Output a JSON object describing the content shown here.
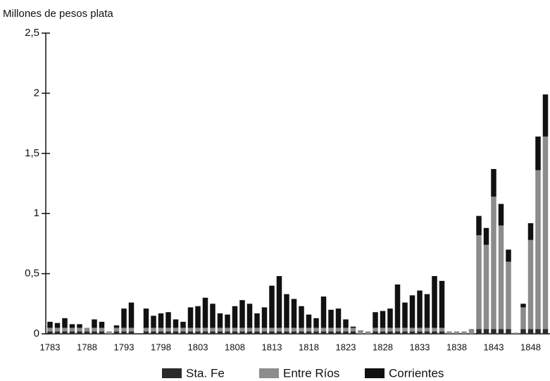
{
  "chart_data": {
    "type": "bar",
    "stacked": true,
    "y_label": "Millones de pesos plata",
    "categories": [
      "1783",
      null,
      null,
      null,
      null,
      "1788",
      null,
      null,
      null,
      null,
      "1793",
      null,
      null,
      null,
      null,
      "1798",
      null,
      null,
      null,
      null,
      "1803",
      null,
      null,
      null,
      null,
      "1808",
      null,
      null,
      null,
      null,
      "1813",
      null,
      null,
      null,
      null,
      "1818",
      null,
      null,
      null,
      null,
      "1823",
      null,
      null,
      null,
      null,
      "1828",
      null,
      null,
      null,
      null,
      "1833",
      null,
      null,
      null,
      null,
      "1838",
      null,
      null,
      null,
      null,
      "1843",
      null,
      null,
      null,
      null,
      "1848",
      null,
      null
    ],
    "series": [
      {
        "name": "Sta. Fe",
        "color": "#2a2a2a",
        "values": [
          0.02,
          0.02,
          0.02,
          0.02,
          0.02,
          0.02,
          0.02,
          0.02,
          0,
          0.02,
          0.02,
          0.02,
          0,
          0.02,
          0.02,
          0.02,
          0.02,
          0.02,
          0.02,
          0.02,
          0.02,
          0.02,
          0.02,
          0.02,
          0.02,
          0.02,
          0.02,
          0.02,
          0.02,
          0.02,
          0.02,
          0.02,
          0.02,
          0.02,
          0.02,
          0.02,
          0.02,
          0.02,
          0.02,
          0.02,
          0.02,
          0.02,
          0,
          0,
          0.02,
          0.02,
          0.02,
          0.02,
          0.02,
          0.02,
          0.02,
          0.02,
          0.02,
          0.02,
          0,
          0,
          0,
          0,
          0.04,
          0.04,
          0.04,
          0.04,
          0.04,
          0,
          0.04,
          0.04,
          0.04,
          0.04
        ]
      },
      {
        "name": "Entre Ríos",
        "color": "#8c8c8c",
        "values": [
          0.03,
          0.03,
          0.03,
          0.03,
          0.03,
          0.03,
          0.03,
          0.03,
          0.02,
          0.03,
          0.03,
          0.03,
          0,
          0.03,
          0.03,
          0.03,
          0.03,
          0.03,
          0.03,
          0.03,
          0.03,
          0.03,
          0.03,
          0.03,
          0.03,
          0.03,
          0.03,
          0.03,
          0.03,
          0.03,
          0.03,
          0.03,
          0.03,
          0.03,
          0.03,
          0.03,
          0.03,
          0.03,
          0.03,
          0.03,
          0.03,
          0.03,
          0.03,
          0.02,
          0.03,
          0.03,
          0.03,
          0.03,
          0.03,
          0.03,
          0.03,
          0.03,
          0.03,
          0.03,
          0.02,
          0.02,
          0.02,
          0.04,
          0.78,
          0.7,
          1.1,
          0.86,
          0.56,
          0.01,
          0.18,
          0.74,
          1.32,
          1.6
        ]
      },
      {
        "name": "Corrientes",
        "color": "#111111",
        "values": [
          0.05,
          0.04,
          0.08,
          0.03,
          0.03,
          0,
          0.07,
          0.05,
          0,
          0.02,
          0.16,
          0.21,
          0,
          0.16,
          0.1,
          0.12,
          0.13,
          0.07,
          0.05,
          0.17,
          0.18,
          0.25,
          0.2,
          0.12,
          0.11,
          0.18,
          0.23,
          0.2,
          0.12,
          0.17,
          0.35,
          0.43,
          0.28,
          0.24,
          0.18,
          0.11,
          0.08,
          0.26,
          0.15,
          0.16,
          0.07,
          0.01,
          0,
          0,
          0.13,
          0.14,
          0.16,
          0.36,
          0.21,
          0.27,
          0.31,
          0.28,
          0.43,
          0.39,
          0,
          0,
          0,
          0,
          0.16,
          0.14,
          0.23,
          0.18,
          0.1,
          0,
          0.03,
          0.14,
          0.28,
          0.35
        ]
      }
    ],
    "ylim": [
      0,
      2.5
    ],
    "yticks": [
      0,
      {
        "value": 0.5,
        "label": "0,5"
      },
      1,
      {
        "value": 1.5,
        "label": "1,5"
      },
      2,
      {
        "value": 2.5,
        "label": "2,5"
      }
    ],
    "legend": "bottom"
  }
}
